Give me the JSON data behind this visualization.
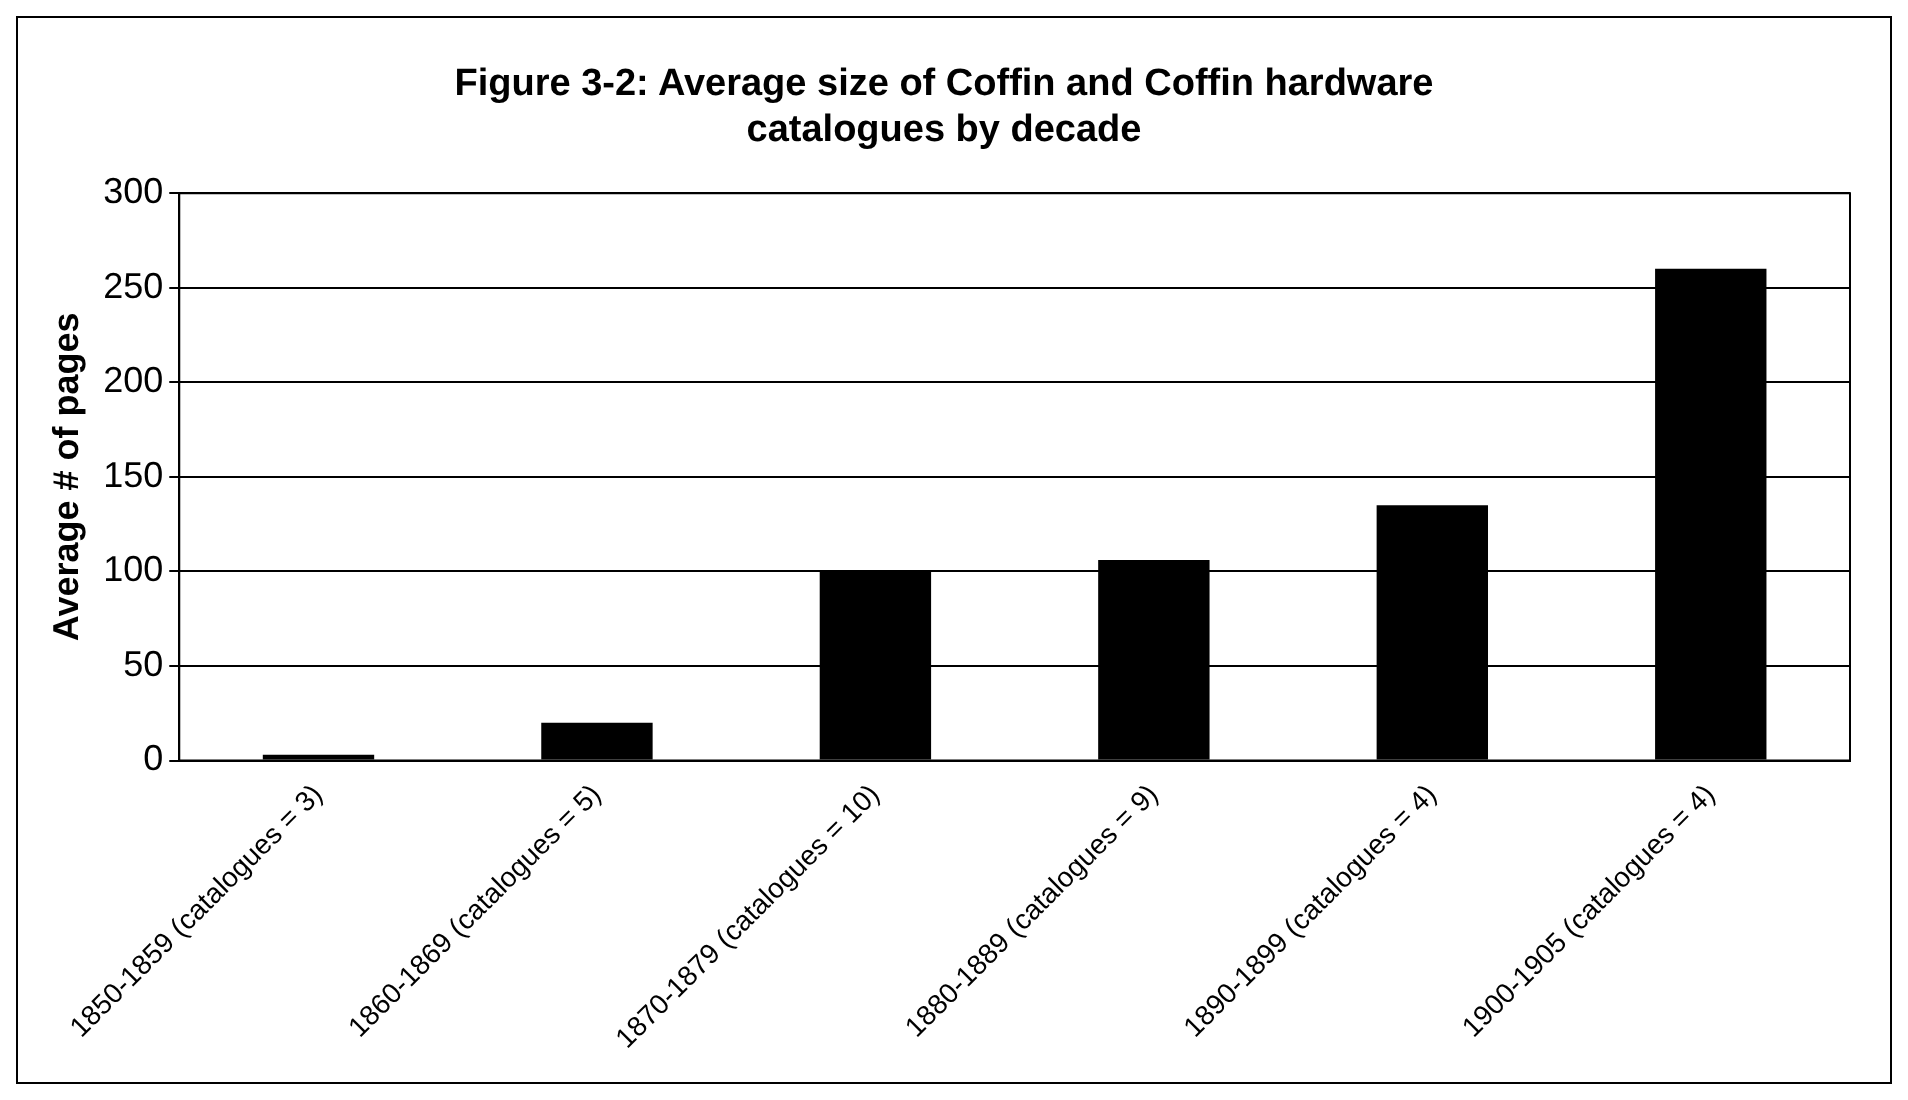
{
  "chart_data": {
    "type": "bar",
    "title": [
      "Figure 3-2: Average size of Coffin and Coffin hardware",
      "catalogues by decade"
    ],
    "ylabel": "Average # of pages",
    "categories": [
      "1850-1859 (catalogues = 3)",
      "1860-1869 (catalogues = 5)",
      "1870-1879 (catalogues = 10)",
      "1880-1889 (catalogues = 9)",
      "1890-1899 (catalogues = 4)",
      "1900-1905 (catalogues = 4)"
    ],
    "values": [
      3,
      20,
      100,
      106,
      135,
      260
    ],
    "color": "#000000",
    "ylim": [
      0,
      300
    ],
    "yticks": [
      0,
      50,
      100,
      150,
      200,
      250,
      300
    ],
    "grid": "y"
  }
}
